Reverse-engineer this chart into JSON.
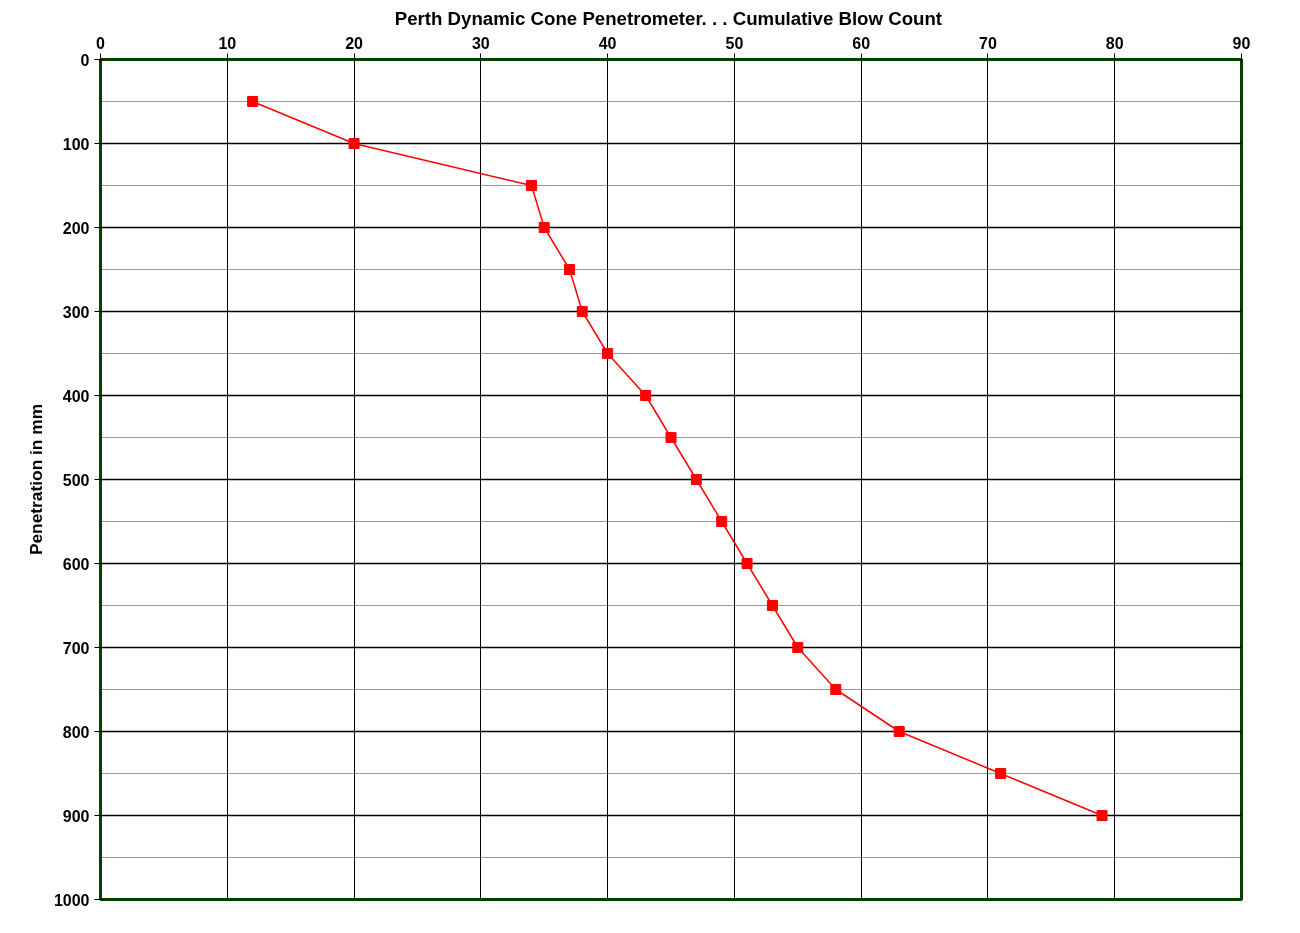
{
  "chart_data": {
    "type": "line",
    "title": "Perth Dynamic Cone Penetrometer. . .  Cumulative Blow Count",
    "ylabel": "Penetration in mm",
    "x": [
      12,
      20,
      34,
      35,
      37,
      38,
      40,
      43,
      45,
      47,
      49,
      51,
      53,
      55,
      58,
      63,
      71,
      79
    ],
    "series": [
      {
        "color": "#ff0000",
        "values": [
          50,
          100,
          150,
          200,
          250,
          300,
          350,
          400,
          450,
          500,
          550,
          600,
          650,
          700,
          750,
          800,
          850,
          900
        ]
      }
    ],
    "marker": "square",
    "line_style": "solid",
    "grid": true,
    "xlim": [
      0,
      90
    ],
    "xticks": [
      0,
      10,
      20,
      30,
      40,
      50,
      60,
      70,
      80,
      90
    ],
    "ylim": [
      1000,
      0
    ],
    "yticks": [
      0,
      {
        "value": 50,
        "label": null
      },
      100,
      {
        "value": 150,
        "label": null
      },
      200,
      {
        "value": 250,
        "label": null
      },
      300,
      {
        "value": 350,
        "label": null
      },
      400,
      {
        "value": 450,
        "label": null
      },
      500,
      {
        "value": 550,
        "label": null
      },
      600,
      {
        "value": 650,
        "label": null
      },
      700,
      {
        "value": 750,
        "label": null
      },
      800,
      {
        "value": 850,
        "label": null
      },
      900,
      {
        "value": 950,
        "label": null
      },
      1000
    ]
  }
}
